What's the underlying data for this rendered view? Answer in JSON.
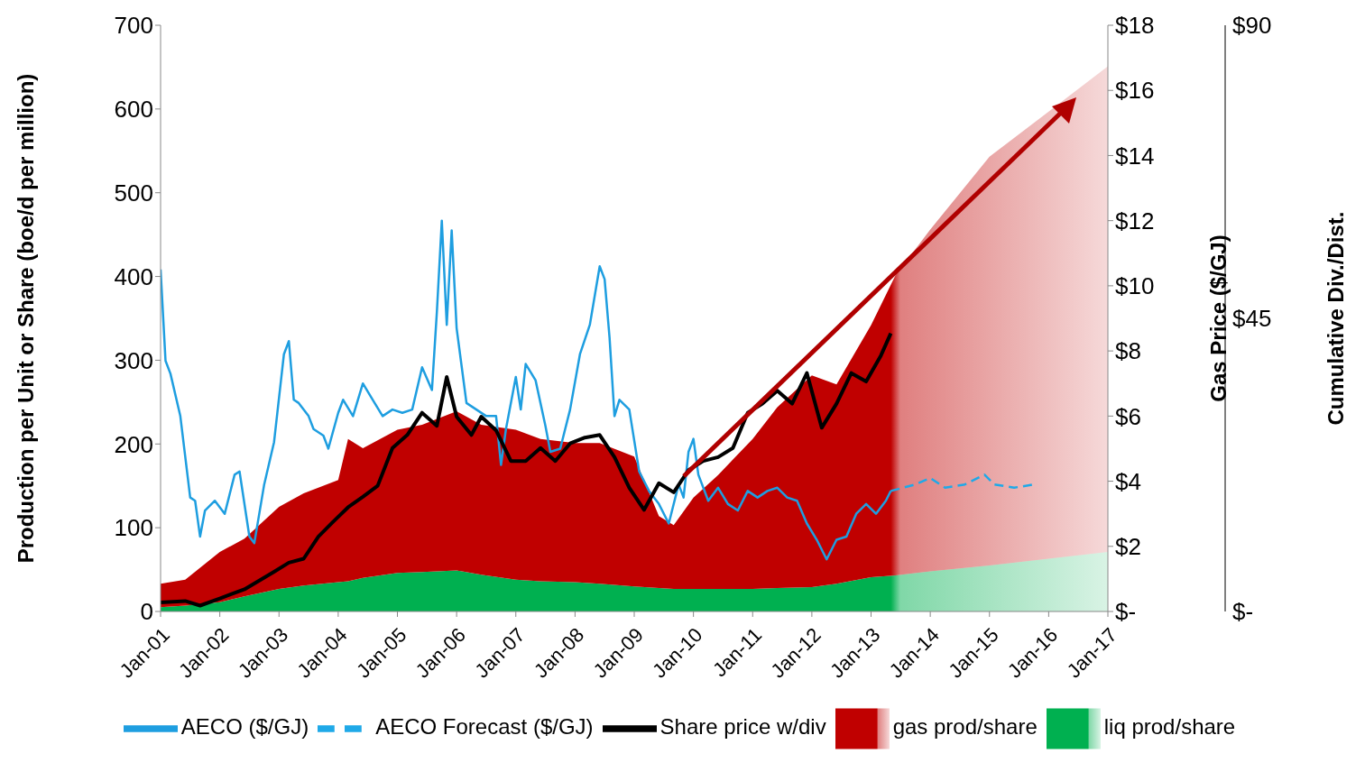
{
  "chart_data": {
    "type": "area",
    "stacked": true,
    "legend": "bottom",
    "ylabel": "Production per Unit or Share (boe/d per million)",
    "y2label": "Gas Price ($/GJ)",
    "y3label": "Cumulative Div./Dist.",
    "x": [
      "2001-01",
      "2001-06",
      "2002-01",
      "2002-06",
      "2003-01",
      "2003-06",
      "2004-01",
      "2004-03",
      "2004-06",
      "2005-01",
      "2005-06",
      "2006-01",
      "2006-06",
      "2007-01",
      "2007-06",
      "2008-01",
      "2008-06",
      "2009-01",
      "2009-06",
      "2009-09",
      "2010-01",
      "2010-06",
      "2011-01",
      "2011-06",
      "2012-01",
      "2012-06",
      "2013-01",
      "2013-06",
      "2014-01",
      "2015-01",
      "2016-01",
      "2017-01"
    ],
    "xlim": [
      "2001-01",
      "2017-01"
    ],
    "xticks": [
      {
        "value": "2001-01",
        "label": "Jan-01"
      },
      {
        "value": "2002-01",
        "label": "Jan-02"
      },
      {
        "value": "2003-01",
        "label": "Jan-03"
      },
      {
        "value": "2004-01",
        "label": "Jan-04"
      },
      {
        "value": "2005-01",
        "label": "Jan-05"
      },
      {
        "value": "2006-01",
        "label": "Jan-06"
      },
      {
        "value": "2007-01",
        "label": "Jan-07"
      },
      {
        "value": "2008-01",
        "label": "Jan-08"
      },
      {
        "value": "2009-01",
        "label": "Jan-09"
      },
      {
        "value": "2010-01",
        "label": "Jan-10"
      },
      {
        "value": "2011-01",
        "label": "Jan-11"
      },
      {
        "value": "2012-01",
        "label": "Jan-12"
      },
      {
        "value": "2013-01",
        "label": "Jan-13"
      },
      {
        "value": "2014-01",
        "label": "Jan-14"
      },
      {
        "value": "2015-01",
        "label": "Jan-15"
      },
      {
        "value": "2016-01",
        "label": "Jan-16"
      },
      {
        "value": "2017-01",
        "label": "Jan-17"
      }
    ],
    "ylim": [
      0,
      700
    ],
    "yticks": [
      0,
      100,
      200,
      300,
      400,
      500,
      600,
      700
    ],
    "y2lim": [
      0,
      18
    ],
    "y2ticks": [
      {
        "value": 0,
        "label": "$-"
      },
      {
        "value": 2,
        "label": "$2"
      },
      {
        "value": 4,
        "label": "$4"
      },
      {
        "value": 6,
        "label": "$6"
      },
      {
        "value": 8,
        "label": "$8"
      },
      {
        "value": 10,
        "label": "$10"
      },
      {
        "value": 12,
        "label": "$12"
      },
      {
        "value": 14,
        "label": "$14"
      },
      {
        "value": 16,
        "label": "$16"
      },
      {
        "value": 18,
        "label": "$18"
      }
    ],
    "y3lim": [
      0,
      90
    ],
    "y3ticks": [
      {
        "value": 0,
        "label": "$-"
      },
      {
        "value": 45,
        "label": "$45"
      },
      {
        "value": 90,
        "label": "$90"
      }
    ],
    "series": [
      {
        "name": "liq prod/share",
        "color": "#00b050",
        "values": [
          5,
          7,
          11,
          18,
          27,
          31,
          35,
          36,
          40,
          46,
          47,
          49,
          44,
          38,
          36,
          35,
          33,
          30,
          28,
          27,
          27,
          27,
          27,
          28,
          29,
          33,
          41,
          43,
          48,
          55,
          63,
          71
        ]
      },
      {
        "name": "gas prod/share",
        "color": "#c00000",
        "values": [
          28,
          31,
          60,
          69,
          98,
          110,
          122,
          170,
          155,
          171,
          176,
          190,
          179,
          179,
          170,
          166,
          168,
          155,
          86,
          76,
          109,
          136,
          179,
          216,
          253,
          238,
          301,
          359,
          408,
          488,
          534,
          580
        ]
      },
      {
        "name": "AECO Forecast ($/GJ)",
        "type": "line",
        "axis": "y2",
        "line_style": "dashed",
        "color": "#1fa9e8",
        "x": [
          "2013-05",
          "2013-10",
          "2014-01",
          "2014-04",
          "2014-08",
          "2014-12",
          "2015-02",
          "2015-06",
          "2015-10"
        ],
        "values": [
          3.7,
          3.9,
          4.1,
          3.8,
          3.9,
          4.2,
          3.9,
          3.8,
          3.9
        ]
      },
      {
        "name": "AECO ($/GJ)",
        "type": "line",
        "axis": "y2",
        "line_style": "solid",
        "color": "#1e9ee0",
        "x": [
          "2001-01",
          "2001-02",
          "2001-03",
          "2001-05",
          "2001-07",
          "2001-08",
          "2001-09",
          "2001-10",
          "2001-12",
          "2002-02",
          "2002-04",
          "2002-05",
          "2002-07",
          "2002-08",
          "2002-10",
          "2002-12",
          "2003-02",
          "2003-03",
          "2003-04",
          "2003-05",
          "2003-07",
          "2003-08",
          "2003-10",
          "2003-11",
          "2004-01",
          "2004-02",
          "2004-04",
          "2004-06",
          "2004-08",
          "2004-10",
          "2004-12",
          "2005-02",
          "2005-04",
          "2005-06",
          "2005-08",
          "2005-09",
          "2005-10",
          "2005-11",
          "2005-12",
          "2006-01",
          "2006-03",
          "2006-05",
          "2006-07",
          "2006-09",
          "2006-10",
          "2006-11",
          "2007-01",
          "2007-02",
          "2007-03",
          "2007-05",
          "2007-07",
          "2007-08",
          "2007-10",
          "2007-12",
          "2008-02",
          "2008-04",
          "2008-06",
          "2008-07",
          "2008-08",
          "2008-09",
          "2008-10",
          "2008-12",
          "2009-02",
          "2009-04",
          "2009-06",
          "2009-08",
          "2009-10",
          "2009-11",
          "2009-12",
          "2010-01",
          "2010-02",
          "2010-04",
          "2010-06",
          "2010-08",
          "2010-10",
          "2010-12",
          "2011-02",
          "2011-04",
          "2011-06",
          "2011-08",
          "2011-10",
          "2011-12",
          "2012-02",
          "2012-04",
          "2012-06",
          "2012-08",
          "2012-10",
          "2012-12",
          "2013-02",
          "2013-04",
          "2013-05"
        ],
        "values": [
          10.5,
          7.7,
          7.3,
          6.0,
          3.5,
          3.4,
          2.3,
          3.1,
          3.4,
          3.0,
          4.2,
          4.3,
          2.3,
          2.1,
          3.9,
          5.2,
          7.9,
          8.3,
          6.5,
          6.4,
          6.0,
          5.6,
          5.4,
          5.0,
          6.1,
          6.5,
          6.0,
          7.0,
          6.5,
          6.0,
          6.2,
          6.1,
          6.2,
          7.5,
          6.8,
          9.2,
          12.0,
          8.8,
          11.7,
          8.7,
          6.4,
          6.2,
          6.0,
          6.0,
          4.5,
          5.6,
          7.2,
          6.2,
          7.6,
          7.1,
          5.7,
          4.9,
          5.0,
          6.2,
          7.9,
          8.8,
          10.6,
          10.2,
          8.4,
          6.0,
          6.5,
          6.2,
          4.3,
          3.7,
          3.3,
          2.7,
          3.9,
          3.5,
          4.9,
          5.3,
          4.2,
          3.4,
          3.8,
          3.3,
          3.1,
          3.7,
          3.5,
          3.7,
          3.8,
          3.5,
          3.4,
          2.7,
          2.2,
          1.6,
          2.2,
          2.3,
          3.0,
          3.3,
          3.0,
          3.4,
          3.7
        ]
      },
      {
        "name": "Share price w/div",
        "type": "line",
        "axis": "y3",
        "line_style": "solid",
        "color": "#000000",
        "x": [
          "2001-01",
          "2001-06",
          "2001-09",
          "2002-01",
          "2002-06",
          "2002-12",
          "2003-03",
          "2003-06",
          "2003-09",
          "2003-12",
          "2004-03",
          "2004-06",
          "2004-09",
          "2004-12",
          "2005-03",
          "2005-06",
          "2005-09",
          "2005-11",
          "2006-01",
          "2006-04",
          "2006-06",
          "2006-09",
          "2006-12",
          "2007-03",
          "2007-06",
          "2007-09",
          "2007-12",
          "2008-03",
          "2008-06",
          "2008-09",
          "2008-12",
          "2009-03",
          "2009-06",
          "2009-09",
          "2009-12",
          "2010-03",
          "2010-06",
          "2010-09",
          "2010-12",
          "2011-03",
          "2011-06",
          "2011-09",
          "2011-12",
          "2012-03",
          "2012-06",
          "2012-09",
          "2012-12",
          "2013-03",
          "2013-05"
        ],
        "values": [
          1.4,
          1.6,
          0.9,
          2.0,
          3.4,
          6.1,
          7.5,
          8.1,
          11.5,
          13.8,
          16.0,
          17.6,
          19.3,
          25.1,
          27.1,
          30.5,
          28.5,
          36.0,
          29.9,
          27.1,
          29.9,
          27.8,
          23.1,
          23.1,
          25.1,
          23.1,
          25.8,
          26.7,
          27.1,
          23.7,
          19.0,
          15.6,
          19.7,
          18.3,
          21.7,
          23.1,
          23.7,
          25.1,
          30.5,
          31.9,
          33.9,
          31.9,
          36.6,
          28.2,
          31.9,
          36.6,
          35.3,
          39.3,
          42.7
        ]
      }
    ]
  }
}
